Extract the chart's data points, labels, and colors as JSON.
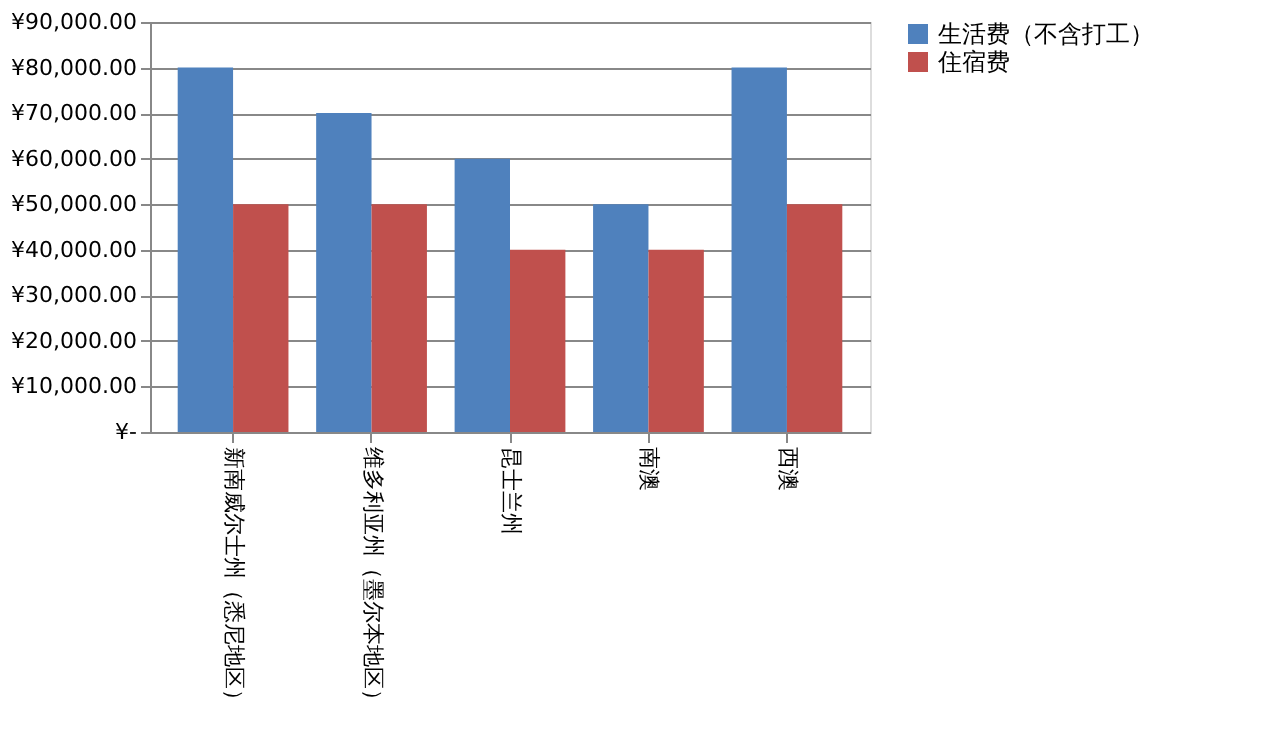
{
  "chart_data": {
    "type": "bar",
    "categories": [
      "新南威尔士州（悉尼地区）",
      "维多利亚州（墨尔本地区）",
      "昆士兰州",
      "南澳",
      "西澳"
    ],
    "series": [
      {
        "name": "生活费（不含打工）",
        "color": "#4f81bd",
        "values": [
          80000,
          70000,
          60000,
          50000,
          80000
        ]
      },
      {
        "name": "住宿费",
        "color": "#c0504d",
        "values": [
          50000,
          50000,
          40000,
          40000,
          50000
        ]
      }
    ],
    "ylim": [
      0,
      90000
    ],
    "yticks": [
      {
        "value": 0,
        "label": "¥-"
      },
      {
        "value": 10000,
        "label": "¥10,000.00"
      },
      {
        "value": 20000,
        "label": "¥20,000.00"
      },
      {
        "value": 30000,
        "label": "¥30,000.00"
      },
      {
        "value": 40000,
        "label": "¥40,000.00"
      },
      {
        "value": 50000,
        "label": "¥50,000.00"
      },
      {
        "value": 60000,
        "label": "¥60,000.00"
      },
      {
        "value": 70000,
        "label": "¥70,000.00"
      },
      {
        "value": 80000,
        "label": "¥80,000.00"
      },
      {
        "value": 90000,
        "label": "¥90,000.00"
      }
    ],
    "grid": "y",
    "legend": "right"
  }
}
